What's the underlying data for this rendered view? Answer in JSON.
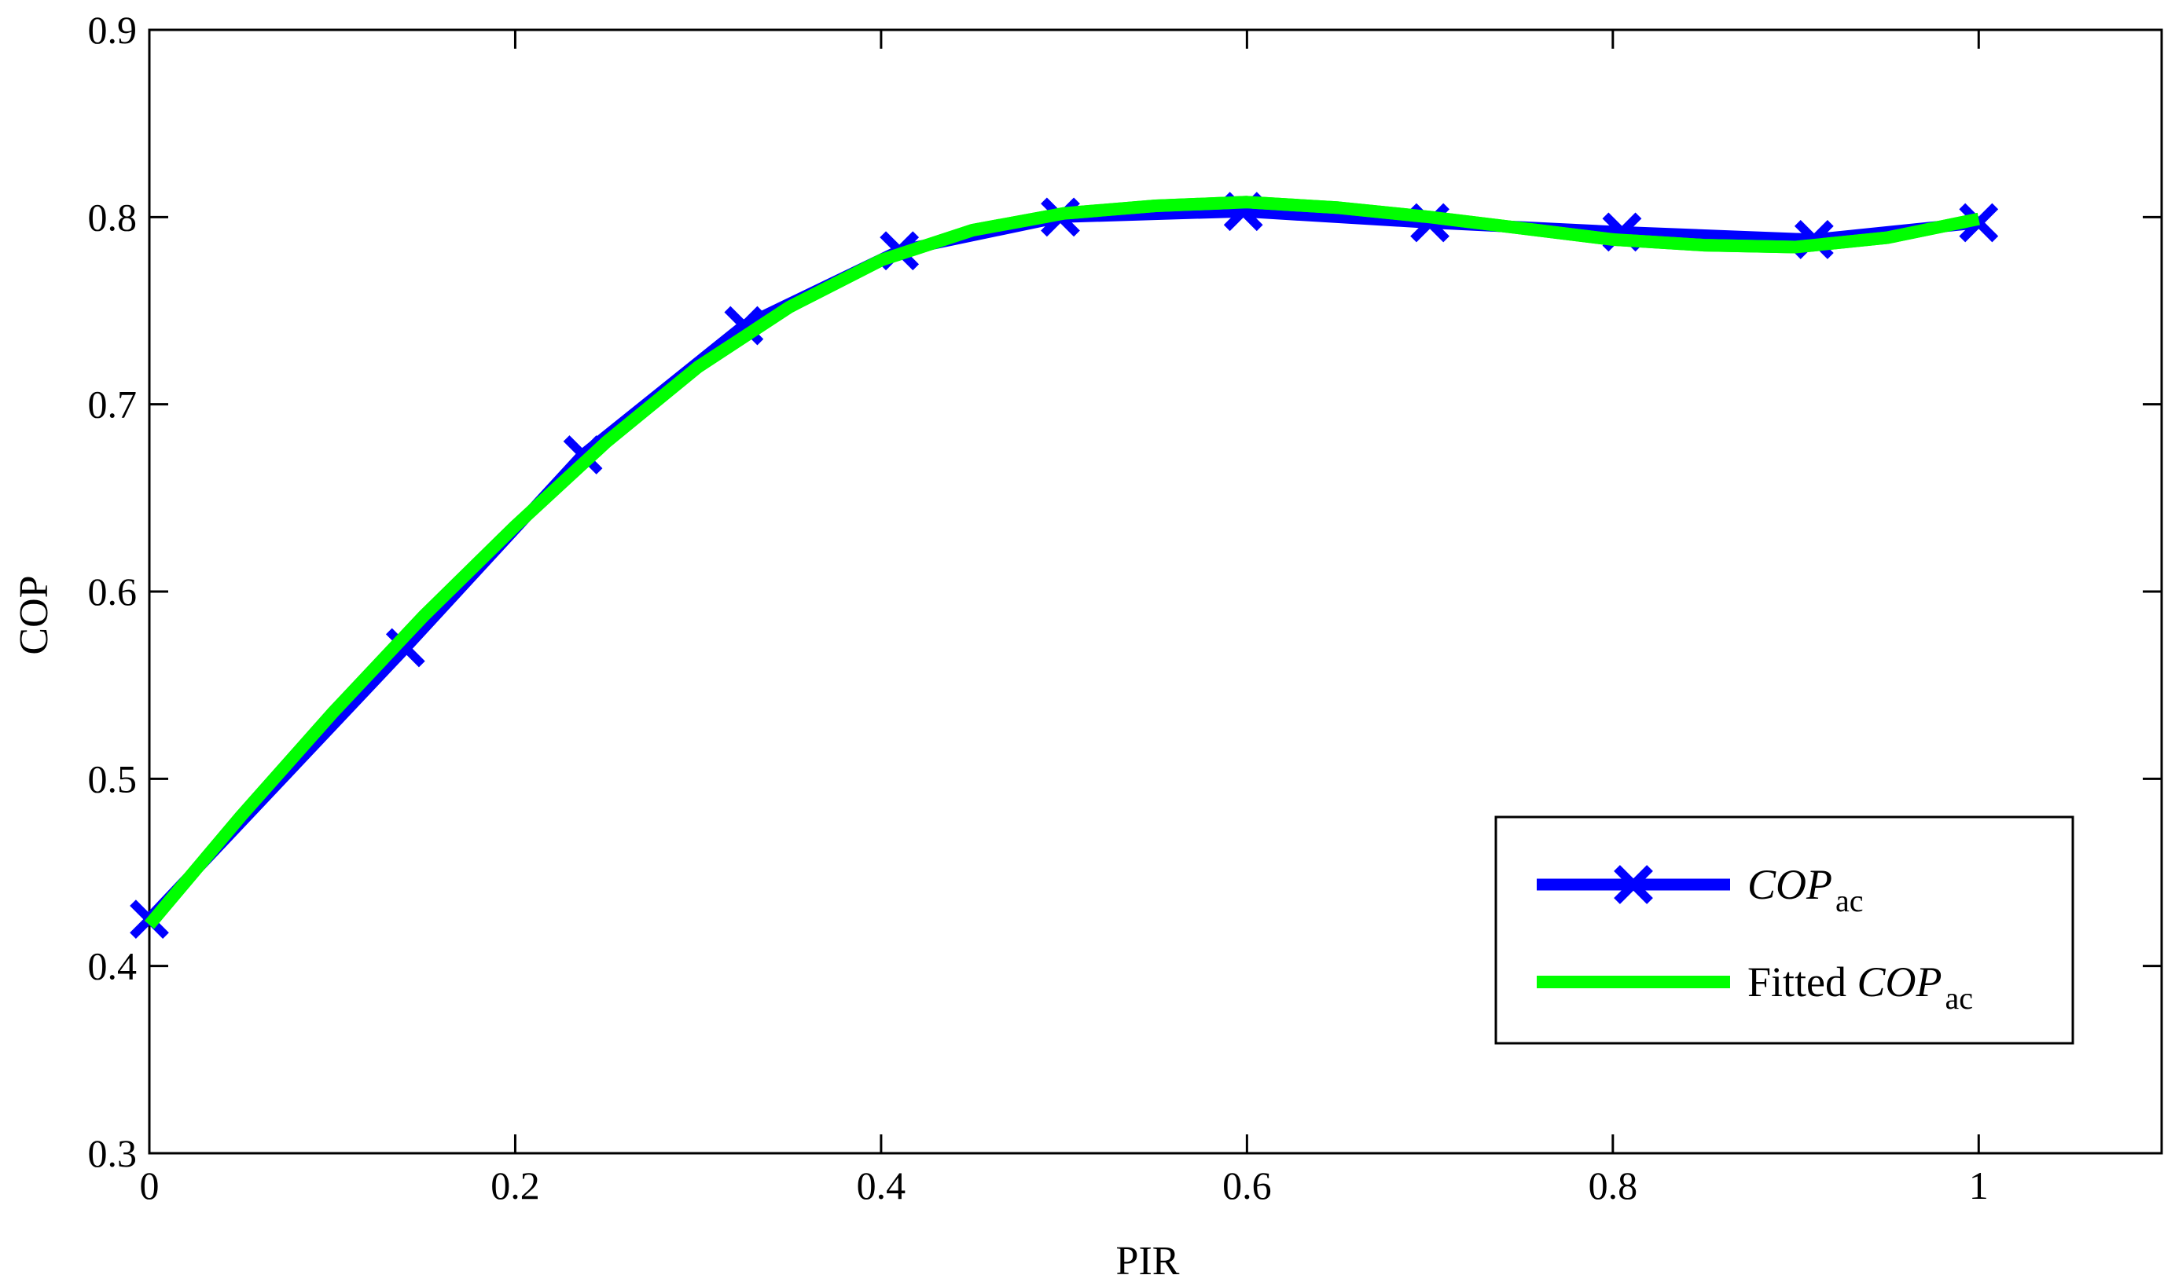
{
  "chart_data": {
    "type": "line",
    "xlabel": "PIR",
    "ylabel": "COP",
    "xlim": [
      0,
      1.1
    ],
    "ylim": [
      0.3,
      0.9
    ],
    "xticks": [
      0,
      0.2,
      0.4,
      0.6,
      0.8,
      1
    ],
    "xtick_labels": [
      "0",
      "0.2",
      "0.4",
      "0.6",
      "0.8",
      "1"
    ],
    "yticks": [
      0.3,
      0.4,
      0.5,
      0.6,
      0.7,
      0.8,
      0.9
    ],
    "ytick_labels": [
      "0.3",
      "0.4",
      "0.5",
      "0.6",
      "0.7",
      "0.8",
      "0.9"
    ],
    "grid": false,
    "legend_position": "bottom-right",
    "series": [
      {
        "name": "COP_ac",
        "label_main": "COP",
        "label_sub": "ac",
        "color": "#0000ff",
        "marker": "x",
        "x": [
          0,
          0.14,
          0.237,
          0.325,
          0.41,
          0.498,
          0.598,
          0.7,
          0.805,
          0.91,
          1.0
        ],
        "y": [
          0.425,
          0.57,
          0.673,
          0.742,
          0.782,
          0.8,
          0.803,
          0.797,
          0.792,
          0.788,
          0.797
        ]
      },
      {
        "name": "Fitted COP_ac",
        "label_prefix": "Fitted ",
        "label_main": "COP",
        "label_sub": "ac",
        "color": "#00ff00",
        "marker": "none",
        "x": [
          0,
          0.05,
          0.1,
          0.15,
          0.2,
          0.25,
          0.3,
          0.35,
          0.4,
          0.45,
          0.5,
          0.55,
          0.6,
          0.65,
          0.7,
          0.75,
          0.8,
          0.85,
          0.9,
          0.95,
          1.0
        ],
        "y": [
          0.422,
          0.48,
          0.535,
          0.587,
          0.635,
          0.68,
          0.72,
          0.752,
          0.777,
          0.793,
          0.802,
          0.806,
          0.808,
          0.805,
          0.8,
          0.794,
          0.788,
          0.785,
          0.784,
          0.789,
          0.799
        ]
      }
    ]
  }
}
